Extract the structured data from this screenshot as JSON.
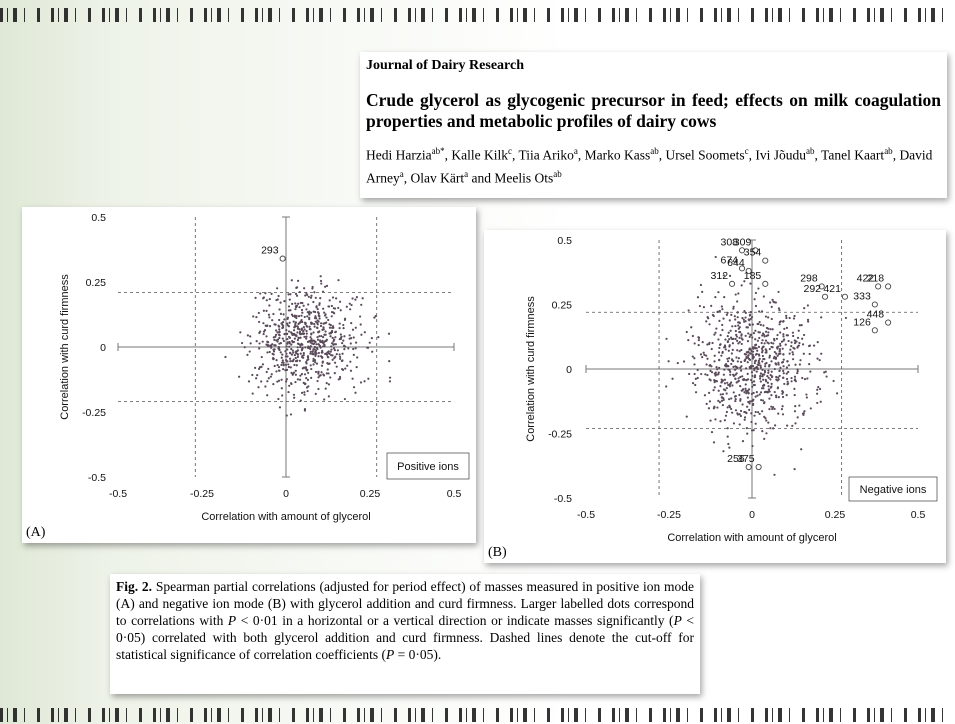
{
  "header": {
    "journal": "Journal of Dairy Research",
    "title": "Crude glycerol as glycogenic precursor in feed; effects on milk coagulation properties and metabolic profiles of dairy cows",
    "authors": [
      {
        "name": "Hedi Harzia",
        "sup": "ab*"
      },
      {
        "name": "Kalle Kilk",
        "sup": "c"
      },
      {
        "name": "Tiia Ariko",
        "sup": "a"
      },
      {
        "name": "Marko Kass",
        "sup": "ab"
      },
      {
        "name": "Ursel Soomets",
        "sup": "c"
      },
      {
        "name": "Ivi Jõudu",
        "sup": "ab"
      },
      {
        "name": "Tanel Kaart",
        "sup": "ab"
      },
      {
        "name": "David Arney",
        "sup": "a"
      },
      {
        "name": "Olav Kärt",
        "sup": "a"
      },
      {
        "name": "Meelis Ots",
        "sup": "ab"
      }
    ]
  },
  "caption": {
    "fig_label": "Fig. 2.",
    "text_1": " Spearman partial correlations (adjusted for period effect) of masses measured in positive ion mode (A) and negative ion mode (B) with glycerol addition and curd firmness. Larger labelled dots correspond to correlations with ",
    "p": "P",
    "text_2": " < 0·01 in a horizontal or a vertical direction or indicate masses significantly (",
    "text_3": " < 0·05) correlated with both glycerol addition and curd firmness. Dashed lines denote the cut-off for statistical significance of correlation coefficients (",
    "text_4": " = 0·05)."
  },
  "colors": {
    "points": "#5a4a5a",
    "axis": "#777777",
    "dashed": "#555555"
  },
  "chart_data": [
    {
      "type": "scatter",
      "panel_label": "(A)",
      "legend": "Positive ions",
      "xlabel": "Correlation with amount of glycerol",
      "ylabel": "Correlation with curd firmness",
      "xlim": [
        -0.5,
        0.5
      ],
      "ylim": [
        -0.5,
        0.5
      ],
      "xticks": [
        "-0.5",
        "-0.25",
        "0",
        "0.25",
        "0.5"
      ],
      "yticks": [
        "0.5",
        "0.25",
        "0",
        "-0.25",
        "-0.5"
      ],
      "cutoff": {
        "x": [
          -0.27,
          0.27
        ],
        "y": [
          -0.21,
          0.21
        ]
      },
      "labelled_points": [
        {
          "label": "293",
          "x": -0.01,
          "y": 0.34
        }
      ],
      "cloud": {
        "n": 720,
        "center": [
          0.06,
          0.02
        ],
        "sd": [
          0.08,
          0.1
        ],
        "seed": 7
      }
    },
    {
      "type": "scatter",
      "panel_label": "(B)",
      "legend": "Negative ions",
      "xlabel": "Correlation with amount of glycerol",
      "ylabel": "Correlation with curd firmness",
      "xlim": [
        -0.5,
        0.5
      ],
      "ylim": [
        -0.5,
        0.5
      ],
      "xticks": [
        "-0.5",
        "-0.25",
        "0",
        "0.25",
        "0.5"
      ],
      "yticks": [
        "0.5",
        "0.25",
        "0",
        "-0.25",
        "-0.5"
      ],
      "cutoff": {
        "x": [
          -0.28,
          0.27
        ],
        "y": [
          -0.23,
          0.22
        ]
      },
      "labelled_points": [
        {
          "label": "308",
          "x": -0.03,
          "y": 0.46
        },
        {
          "label": "309",
          "x": 0.01,
          "y": 0.46
        },
        {
          "label": "354",
          "x": 0.04,
          "y": 0.42
        },
        {
          "label": "674",
          "x": -0.03,
          "y": 0.39
        },
        {
          "label": "644",
          "x": -0.01,
          "y": 0.38
        },
        {
          "label": "312",
          "x": -0.06,
          "y": 0.33
        },
        {
          "label": "185",
          "x": 0.04,
          "y": 0.33
        },
        {
          "label": "298",
          "x": 0.21,
          "y": 0.32
        },
        {
          "label": "422",
          "x": 0.38,
          "y": 0.32
        },
        {
          "label": "218",
          "x": 0.41,
          "y": 0.32
        },
        {
          "label": "421",
          "x": 0.28,
          "y": 0.28
        },
        {
          "label": "292",
          "x": 0.22,
          "y": 0.28
        },
        {
          "label": "333",
          "x": 0.37,
          "y": 0.25
        },
        {
          "label": "448",
          "x": 0.41,
          "y": 0.18
        },
        {
          "label": "126",
          "x": 0.37,
          "y": 0.15
        },
        {
          "label": "256",
          "x": -0.01,
          "y": -0.38
        },
        {
          "label": "375",
          "x": 0.02,
          "y": -0.38
        }
      ],
      "cloud": {
        "n": 780,
        "center": [
          0.0,
          0.02
        ],
        "sd": [
          0.09,
          0.13
        ],
        "seed": 19
      }
    }
  ]
}
